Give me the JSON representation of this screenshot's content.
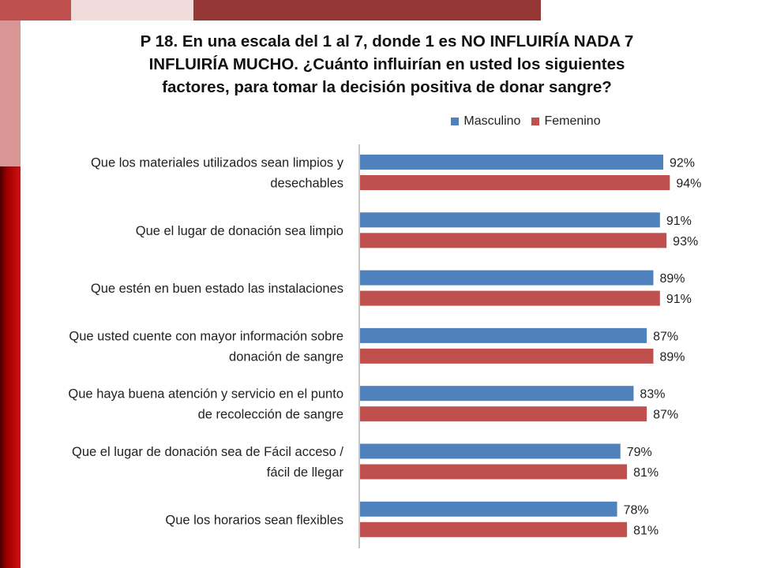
{
  "colors": {
    "masculino": "#4f81bd",
    "femenino": "#c0504d"
  },
  "title_lines": [
    "P 18. En una escala del 1 al 7, donde 1 es NO INFLUIRÍA NADA 7",
    "INFLUIRÍA MUCHO. ¿Cuánto influirían en usted los siguientes",
    "factores, para tomar la decisión positiva de donar sangre?"
  ],
  "chart_data": {
    "type": "bar",
    "orientation": "horizontal",
    "title": "P 18. En una escala del 1 al 7, donde 1 es NO INFLUIRÍA NADA 7 INFLUIRÍA MUCHO. ¿Cuánto influirían en usted los siguientes factores, para tomar la decisión positiva de donar sangre?",
    "legend_position": "top",
    "grid": false,
    "xlim": [
      0,
      100
    ],
    "categories": [
      [
        "Que los materiales utilizados sean limpios y",
        "desechables"
      ],
      [
        "Que el lugar de donación sea limpio"
      ],
      [
        "Que estén en buen estado las instalaciones"
      ],
      [
        "Que usted cuente con mayor información sobre",
        "donación de sangre"
      ],
      [
        "Que haya buena atención y servicio en el punto",
        "de recolección de sangre"
      ],
      [
        "Que el lugar de donación sea de Fácil acceso /",
        "fácil de llegar"
      ],
      [
        "Que los horarios sean flexibles"
      ]
    ],
    "series": [
      {
        "name": "Masculino",
        "values": [
          92,
          91,
          89,
          87,
          83,
          79,
          78
        ]
      },
      {
        "name": "Femenino",
        "values": [
          94,
          93,
          91,
          89,
          87,
          81,
          81
        ]
      }
    ]
  }
}
